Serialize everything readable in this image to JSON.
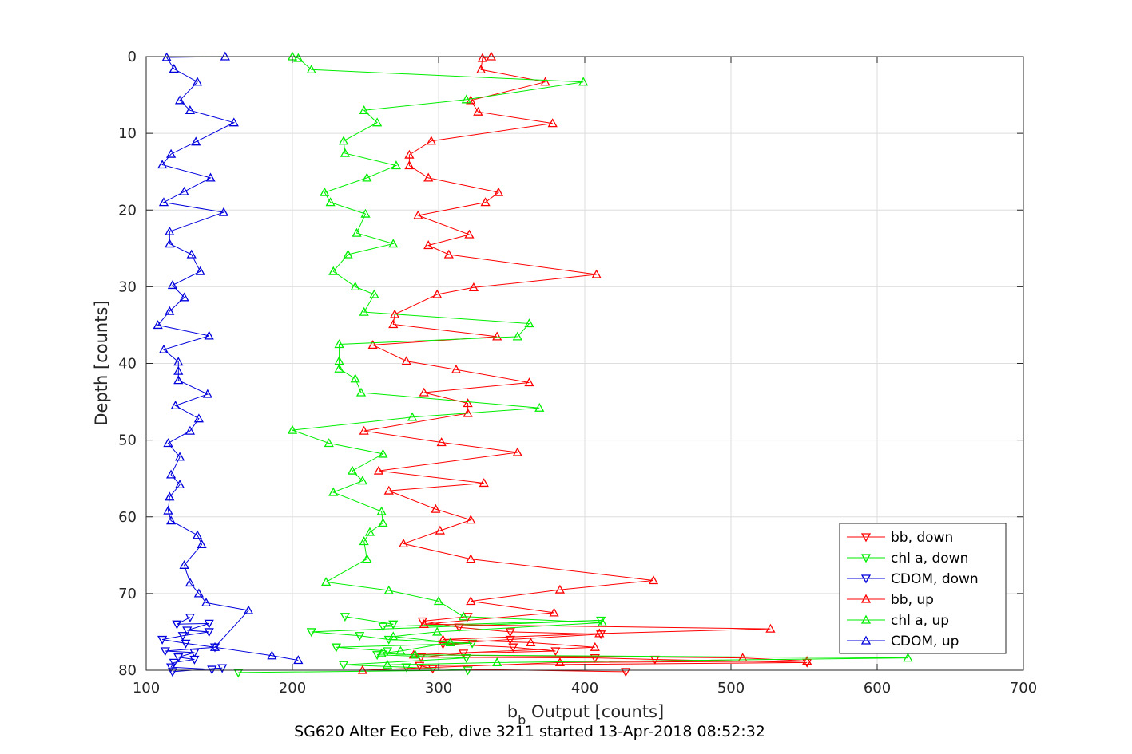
{
  "chart_data": {
    "type": "line",
    "caption": "SG620 Alter Eco Feb, dive 3211 started 13-Apr-2018 08:52:32",
    "xlabel_main": "b",
    "xlabel_sub": "b",
    "xlabel_rest": " Output [counts]",
    "ylabel": "Depth [counts]",
    "xlim": [
      100,
      700
    ],
    "ylim": [
      0,
      80
    ],
    "y_reversed": true,
    "grid": true,
    "legend_position": "bottom-right",
    "xticks": [
      "100",
      "200",
      "300",
      "400",
      "500",
      "600",
      "700"
    ],
    "yticks": [
      "0",
      "10",
      "20",
      "30",
      "40",
      "50",
      "60",
      "70",
      "80"
    ],
    "series": [
      {
        "name": "bb, down",
        "color": "#ff0000",
        "marker": "triangle-down",
        "points": [
          [
            428,
            80.2
          ],
          [
            296,
            79.8
          ],
          [
            287,
            79.4
          ],
          [
            552,
            79.0
          ],
          [
            448,
            78.6
          ],
          [
            407,
            78.4
          ],
          [
            288,
            78.3
          ],
          [
            317,
            77.8
          ],
          [
            380,
            77.5
          ],
          [
            351,
            77.0
          ],
          [
            303,
            76.6
          ],
          [
            349,
            76.0
          ],
          [
            411,
            75.3
          ],
          [
            349,
            75.0
          ],
          [
            314,
            74.4
          ],
          [
            289,
            73.6
          ],
          [
            320,
            73.0
          ]
        ]
      },
      {
        "name": "chl a, down",
        "color": "#00ee00",
        "marker": "triangle-down",
        "points": [
          [
            163,
            80.3
          ],
          [
            320,
            80.0
          ],
          [
            278,
            79.6
          ],
          [
            235,
            79.3
          ],
          [
            319,
            78.4
          ],
          [
            258,
            78.0
          ],
          [
            265,
            77.5
          ],
          [
            230,
            77.0
          ],
          [
            323,
            76.5
          ],
          [
            266,
            76.0
          ],
          [
            246,
            75.5
          ],
          [
            213,
            75.0
          ],
          [
            411,
            73.5
          ],
          [
            262,
            74.3
          ],
          [
            269,
            74.0
          ],
          [
            236,
            73.0
          ]
        ]
      },
      {
        "name": "CDOM, down",
        "color": "#0000dd",
        "marker": "triangle-down",
        "points": [
          [
            118,
            80.2
          ],
          [
            152,
            79.7
          ],
          [
            145,
            79.9
          ],
          [
            117,
            79.6
          ],
          [
            119,
            79.0
          ],
          [
            133,
            78.6
          ],
          [
            122,
            78.3
          ],
          [
            133,
            77.7
          ],
          [
            113,
            77.5
          ],
          [
            147,
            77.0
          ],
          [
            127,
            76.5
          ],
          [
            111,
            76.0
          ],
          [
            125,
            75.5
          ],
          [
            143,
            75.0
          ],
          [
            128,
            74.8
          ],
          [
            143,
            73.9
          ],
          [
            121,
            74.0
          ],
          [
            130,
            73.1
          ]
        ]
      },
      {
        "name": "bb, up",
        "color": "#ff0000",
        "marker": "triangle-up",
        "points": [
          [
            248,
            80.0
          ],
          [
            383,
            79.0
          ],
          [
            552,
            78.8
          ],
          [
            508,
            78.4
          ],
          [
            283,
            78.0
          ],
          [
            407,
            77.0
          ],
          [
            363,
            76.4
          ],
          [
            303,
            76.0
          ],
          [
            410,
            75.2
          ],
          [
            527,
            74.6
          ],
          [
            290,
            74.0
          ],
          [
            379,
            72.5
          ],
          [
            322,
            71.0
          ],
          [
            383,
            69.5
          ],
          [
            447,
            68.3
          ],
          [
            322,
            65.5
          ],
          [
            276,
            63.5
          ],
          [
            301,
            61.8
          ],
          [
            322,
            60.4
          ],
          [
            298,
            59.0
          ],
          [
            266,
            56.6
          ],
          [
            331,
            55.6
          ],
          [
            259,
            54.0
          ],
          [
            354,
            51.6
          ],
          [
            302,
            50.3
          ],
          [
            249,
            48.8
          ],
          [
            320,
            46.5
          ],
          [
            320,
            45.2
          ],
          [
            290,
            43.8
          ],
          [
            362,
            42.5
          ],
          [
            312,
            40.8
          ],
          [
            278,
            39.7
          ],
          [
            255,
            37.6
          ],
          [
            340,
            36.5
          ],
          [
            269,
            34.9
          ],
          [
            270,
            33.6
          ],
          [
            299,
            31.0
          ],
          [
            324,
            30.1
          ],
          [
            408,
            28.4
          ],
          [
            307,
            25.8
          ],
          [
            293,
            24.6
          ],
          [
            321,
            23.2
          ],
          [
            286,
            20.7
          ],
          [
            332,
            19.0
          ],
          [
            341,
            17.7
          ],
          [
            293,
            15.8
          ],
          [
            280,
            14.2
          ],
          [
            280,
            12.8
          ],
          [
            295,
            11.0
          ],
          [
            378,
            8.7
          ],
          [
            327,
            7.2
          ],
          [
            322,
            5.7
          ],
          [
            373,
            3.3
          ],
          [
            329,
            1.7
          ],
          [
            330,
            0.2
          ],
          [
            336,
            0.0
          ]
        ]
      },
      {
        "name": "chl a, up",
        "color": "#00ee00",
        "marker": "triangle-up",
        "points": [
          [
            265,
            79.3
          ],
          [
            340,
            79.0
          ],
          [
            621,
            78.4
          ],
          [
            284,
            78.0
          ],
          [
            261,
            77.8
          ],
          [
            274,
            77.5
          ],
          [
            308,
            76.4
          ],
          [
            269,
            75.6
          ],
          [
            299,
            75.0
          ],
          [
            412,
            73.8
          ],
          [
            317,
            73.0
          ],
          [
            300,
            71.0
          ],
          [
            266,
            69.6
          ],
          [
            223,
            68.5
          ],
          [
            251,
            65.5
          ],
          [
            249,
            63.2
          ],
          [
            253,
            62.0
          ],
          [
            262,
            60.8
          ],
          [
            261,
            59.3
          ],
          [
            228,
            56.8
          ],
          [
            248,
            55.3
          ],
          [
            241,
            54.0
          ],
          [
            262,
            51.8
          ],
          [
            225,
            50.4
          ],
          [
            200,
            48.7
          ],
          [
            282,
            47.0
          ],
          [
            369,
            45.8
          ],
          [
            247,
            43.8
          ],
          [
            243,
            42.0
          ],
          [
            232,
            40.7
          ],
          [
            232,
            39.7
          ],
          [
            232,
            37.5
          ],
          [
            354,
            36.5
          ],
          [
            362,
            34.8
          ],
          [
            249,
            33.3
          ],
          [
            256,
            31.0
          ],
          [
            243,
            30.0
          ],
          [
            228,
            28.0
          ],
          [
            238,
            25.8
          ],
          [
            269,
            24.4
          ],
          [
            244,
            23.0
          ],
          [
            250,
            20.5
          ],
          [
            226,
            19.0
          ],
          [
            222,
            17.7
          ],
          [
            251,
            15.8
          ],
          [
            271,
            14.2
          ],
          [
            236,
            12.6
          ],
          [
            235,
            11.0
          ],
          [
            258,
            8.6
          ],
          [
            249,
            7.0
          ],
          [
            319,
            5.6
          ],
          [
            399,
            3.3
          ],
          [
            213,
            1.7
          ],
          [
            204,
            0.2
          ],
          [
            200,
            0.0
          ]
        ]
      },
      {
        "name": "CDOM, up",
        "color": "#0000dd",
        "marker": "triangle-up",
        "points": [
          [
            204,
            78.7
          ],
          [
            186,
            78.1
          ],
          [
            147,
            77.0
          ],
          [
            170,
            72.2
          ],
          [
            141,
            71.2
          ],
          [
            136,
            70.0
          ],
          [
            130,
            68.6
          ],
          [
            126,
            66.3
          ],
          [
            138,
            63.6
          ],
          [
            135,
            62.4
          ],
          [
            117,
            60.5
          ],
          [
            115,
            59.2
          ],
          [
            116,
            57.4
          ],
          [
            123,
            55.8
          ],
          [
            117,
            54.5
          ],
          [
            123,
            52.2
          ],
          [
            115,
            50.4
          ],
          [
            130,
            48.8
          ],
          [
            136,
            47.2
          ],
          [
            120,
            45.5
          ],
          [
            142,
            44.0
          ],
          [
            122,
            42.2
          ],
          [
            122,
            41.0
          ],
          [
            122,
            39.8
          ],
          [
            112,
            38.2
          ],
          [
            143,
            36.4
          ],
          [
            108,
            35.0
          ],
          [
            116,
            33.2
          ],
          [
            126,
            31.4
          ],
          [
            118,
            29.8
          ],
          [
            137,
            28.0
          ],
          [
            131,
            25.8
          ],
          [
            116,
            24.4
          ],
          [
            116,
            22.8
          ],
          [
            153,
            20.3
          ],
          [
            112,
            19.0
          ],
          [
            126,
            17.6
          ],
          [
            144,
            15.8
          ],
          [
            111,
            14.1
          ],
          [
            117,
            12.7
          ],
          [
            134,
            11.1
          ],
          [
            160,
            8.6
          ],
          [
            130,
            7.0
          ],
          [
            123,
            5.7
          ],
          [
            135,
            3.3
          ],
          [
            119,
            1.6
          ],
          [
            114,
            0.1
          ],
          [
            154,
            0.0
          ]
        ]
      }
    ]
  }
}
